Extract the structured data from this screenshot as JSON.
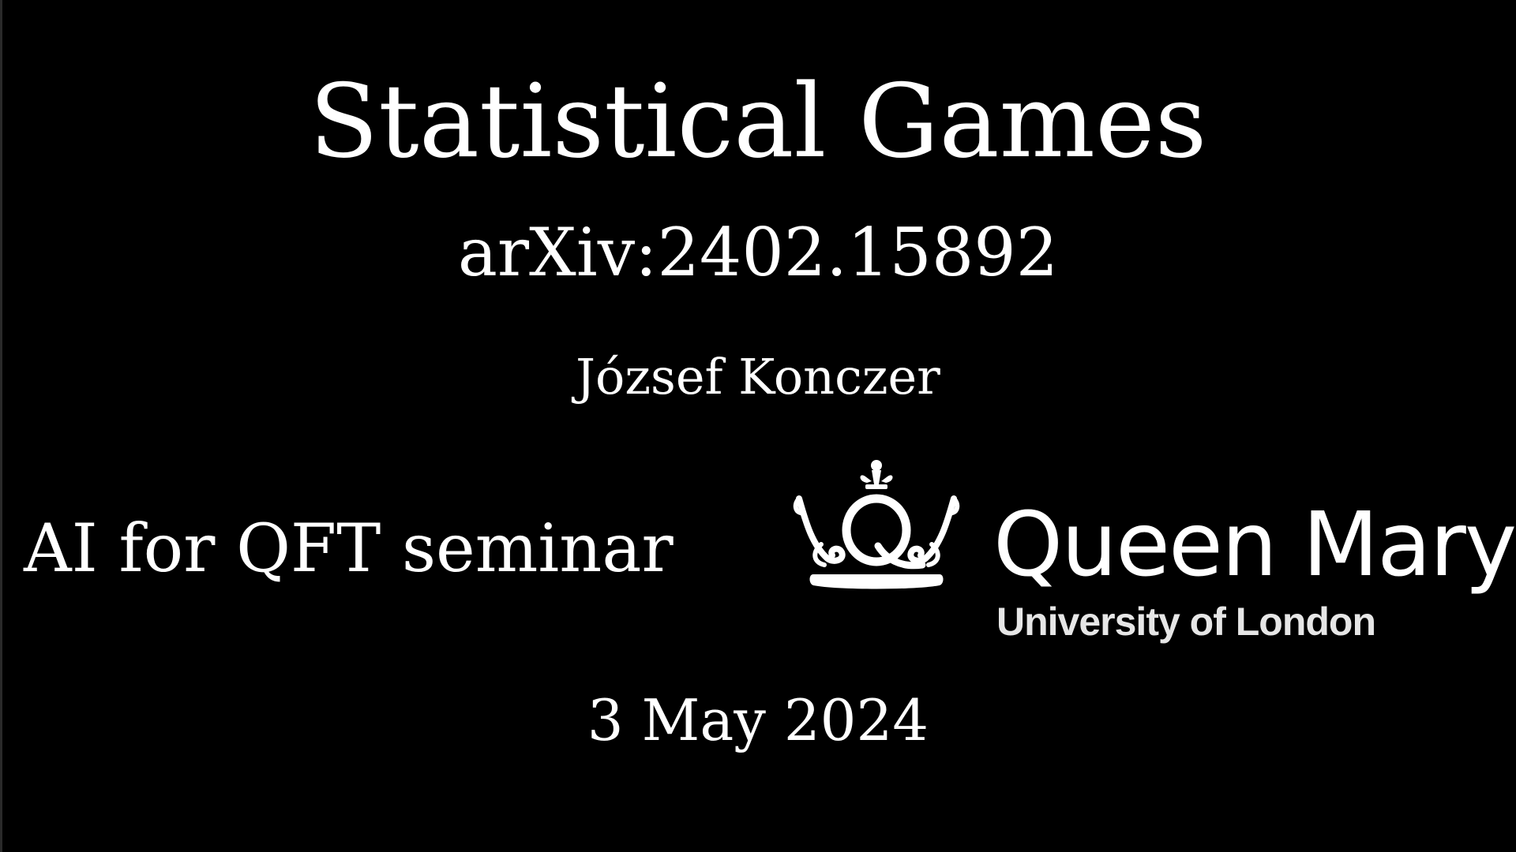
{
  "slide": {
    "title": "Statistical Games",
    "arxiv": "arXiv:2402.15892",
    "author": "József Konczer",
    "seminar": "AI for QFT seminar",
    "logo": {
      "name": "Queen Mary",
      "subtitle": "University of London",
      "icon": "crown-q-icon"
    },
    "date": "3 May 2024"
  },
  "colors": {
    "background": "#000000",
    "text": "#ffffff"
  }
}
